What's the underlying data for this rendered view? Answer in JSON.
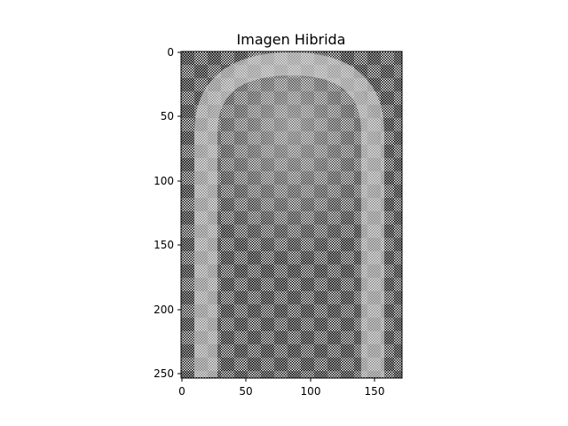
{
  "figure": {
    "title": "Imagen Hibrida",
    "x_ticks": [
      "0",
      "50",
      "100",
      "150"
    ],
    "y_ticks": [
      "0",
      "50",
      "100",
      "150",
      "200",
      "250"
    ],
    "colors": {
      "dark": "#000000",
      "light": "#ffffff",
      "gray": "#8a8a8a",
      "light_gray": "#bcbcbc"
    }
  }
}
